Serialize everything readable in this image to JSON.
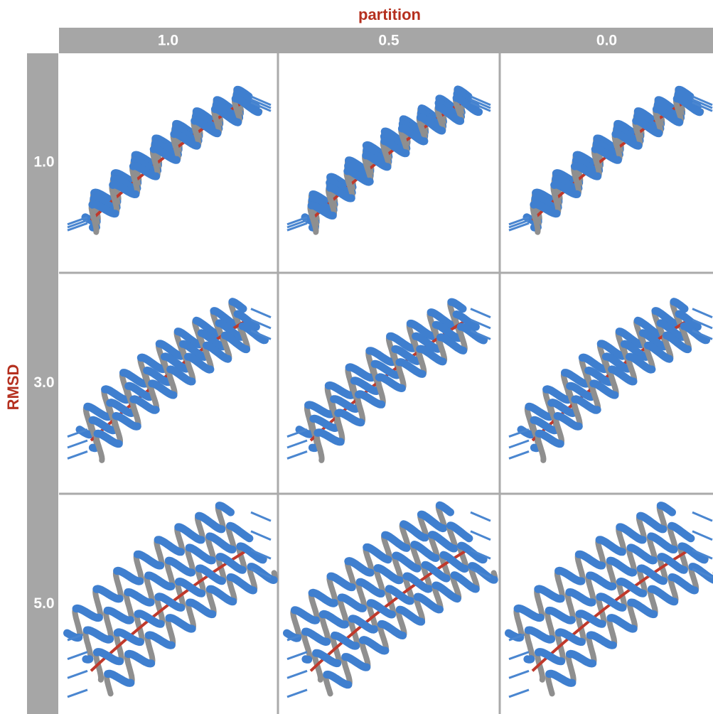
{
  "column_header": {
    "title": "partition",
    "labels": [
      "1.0",
      "0.5",
      "0.0"
    ]
  },
  "row_header": {
    "title": "RMSD",
    "labels": [
      "1.0",
      "3.0",
      "5.0"
    ]
  }
}
